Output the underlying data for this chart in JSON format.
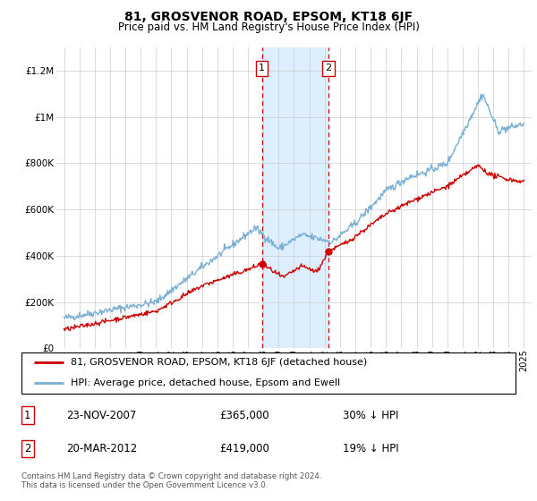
{
  "title": "81, GROSVENOR ROAD, EPSOM, KT18 6JF",
  "subtitle": "Price paid vs. HM Land Registry's House Price Index (HPI)",
  "sale1": {
    "date": "23-NOV-2007",
    "price": 365000,
    "pct": "30% ↓ HPI",
    "year": 2007.9
  },
  "sale2": {
    "date": "20-MAR-2012",
    "price": 419000,
    "pct": "19% ↓ HPI",
    "year": 2012.25
  },
  "shaded_region": [
    2007.9,
    2012.25
  ],
  "red_line_color": "#cc0000",
  "blue_line_color": "#7ab0d4",
  "shade_color": "#ddeeff",
  "legend_label_red": "81, GROSVENOR ROAD, EPSOM, KT18 6JF (detached house)",
  "legend_label_blue": "HPI: Average price, detached house, Epsom and Ewell",
  "footer": "Contains HM Land Registry data © Crown copyright and database right 2024.\nThis data is licensed under the Open Government Licence v3.0.",
  "ylim": [
    0,
    1300000
  ],
  "yticks": [
    0,
    200000,
    400000,
    600000,
    800000,
    1000000,
    1200000
  ],
  "ytick_labels": [
    "£0",
    "£200K",
    "£400K",
    "£600K",
    "£800K",
    "£1M",
    "£1.2M"
  ],
  "start_year": 1995,
  "end_year": 2025,
  "xlim": [
    1994.5,
    2025.5
  ]
}
